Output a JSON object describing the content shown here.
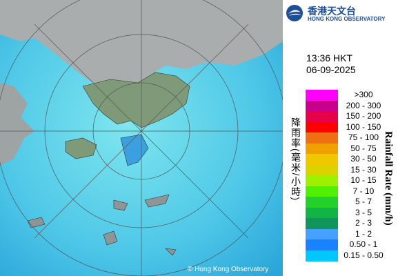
{
  "header": {
    "name_zh": "香港天文台",
    "name_en": "HONG KONG OBSERVATORY"
  },
  "time": "13:36 HKT",
  "date": "06-09-2025",
  "legend": {
    "title_zh": "降雨率(毫米/小時)",
    "title_en": "Rainfall Rate (mm/h)",
    "items": [
      {
        "label": ">300",
        "color": "#ff00ff"
      },
      {
        "label": "200 - 300",
        "color": "#c8008c"
      },
      {
        "label": "150 - 200",
        "color": "#e6004a"
      },
      {
        "label": "100 - 150",
        "color": "#ff0000"
      },
      {
        "label": "75 - 100",
        "color": "#f06e14"
      },
      {
        "label": "50 - 75",
        "color": "#f0a000"
      },
      {
        "label": "30 - 50",
        "color": "#f0c800"
      },
      {
        "label": "15 - 30",
        "color": "#dcd200"
      },
      {
        "label": "10 - 15",
        "color": "#a0f000"
      },
      {
        "label": "7 - 10",
        "color": "#50f000"
      },
      {
        "label": "5 - 7",
        "color": "#22d22a"
      },
      {
        "label": "3 - 5",
        "color": "#12b446"
      },
      {
        "label": "2 - 3",
        "color": "#10965a"
      },
      {
        "label": "1 - 2",
        "color": "#46a0ff"
      },
      {
        "label": "0.50 - 1",
        "color": "#1a82ff"
      },
      {
        "label": "0.15 - 0.50",
        "color": "#00c8ff"
      }
    ]
  },
  "copyright": "© Hong Kong Observatory"
}
